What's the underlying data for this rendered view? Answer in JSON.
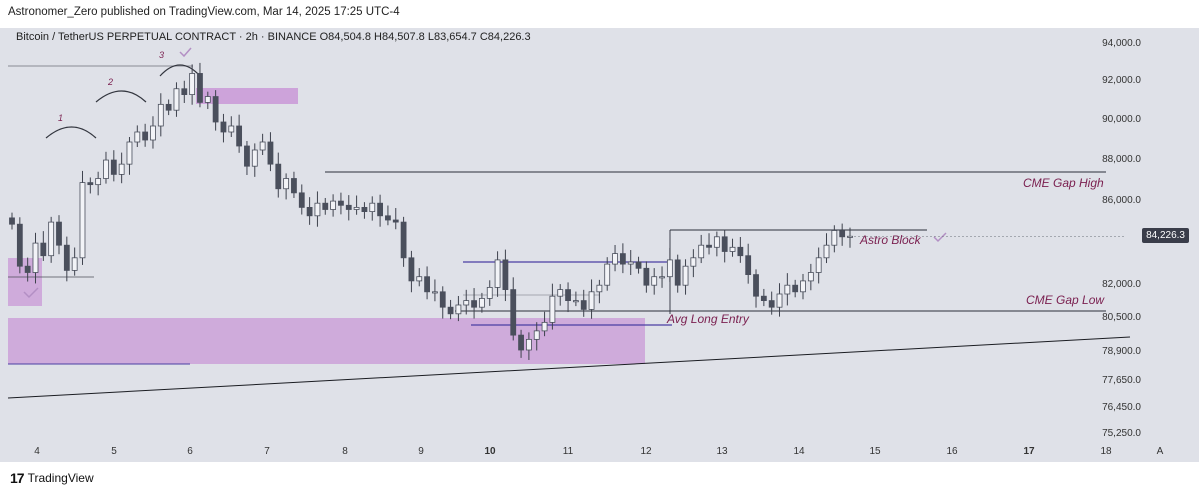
{
  "header": {
    "caption": "Astronomer_Zero published on TradingView.com, Mar 14, 2025 17:25 UTC-4"
  },
  "symbol": {
    "line": "Bitcoin / TetherUS PERPETUAL CONTRACT · 2h · BINANCE  O84,504.8  H84,507.8  L83,654.7  C84,226.3"
  },
  "footer": {
    "logo": "17",
    "brand": "TradingView"
  },
  "colors": {
    "background": "#dfe1e8",
    "candle": "#4a4f5c",
    "zone": "#c894d6",
    "annotation": "#7a1f4f",
    "line": "#2b2f3a",
    "blue_line": "#4b3fa3"
  },
  "chart_data": {
    "type": "candlestick",
    "x_axis": {
      "labels": [
        "4",
        "5",
        "6",
        "7",
        "8",
        "9",
        "10",
        "11",
        "12",
        "13",
        "14",
        "15",
        "16",
        "17",
        "18"
      ],
      "bold": [
        "10",
        "17"
      ]
    },
    "y_axis": {
      "ticks": [
        "94,000.0",
        "92,000.0",
        "90,000.0",
        "88,000.0",
        "86,000.0",
        "82,000.0",
        "80,500.0",
        "78,900.0",
        "77,650.0",
        "76,450.0",
        "75,250.0"
      ],
      "current_price": "84,226.3"
    },
    "annotations": {
      "wave_labels": [
        "1",
        "2",
        "3"
      ],
      "cme_gap_high": "CME Gap High",
      "astro_block": "Astro Block",
      "cme_gap_low": "CME Gap Low",
      "avg_long_entry": "Avg Long Entry",
      "corner": "A"
    },
    "levels": {
      "cme_gap_high": 87200,
      "cme_gap_low": 80700,
      "astro_block": 84400
    },
    "closes": [
      84800,
      82800,
      82500,
      83900,
      83300,
      84900,
      83800,
      82600,
      83200,
      86800,
      86700,
      87000,
      87900,
      87200,
      87700,
      88800,
      89300,
      88900,
      89600,
      90700,
      90400,
      91500,
      91200,
      92300,
      90800,
      91100,
      89800,
      89300,
      89600,
      88600,
      87600,
      88400,
      88800,
      87700,
      86500,
      87000,
      86300,
      85600,
      85200,
      85800,
      85500,
      85900,
      85700,
      85500,
      85600,
      85400,
      85800,
      85200,
      85000,
      84900,
      83200,
      82100,
      82300,
      81600,
      81600,
      80900,
      80600,
      81000,
      81200,
      80900,
      81300,
      81800,
      83100,
      81700,
      79600,
      78900,
      79400,
      79800,
      80200,
      81400,
      81700,
      81200,
      81200,
      80800,
      81600,
      81900,
      82900,
      83400,
      82900,
      83000,
      82700,
      81900,
      82300,
      82300,
      83100,
      81900,
      82800,
      83200,
      83800,
      83700,
      84200,
      83500,
      83700,
      83300,
      82400,
      81400,
      81200,
      80900,
      81500,
      81900,
      81600,
      82100,
      82500,
      83200,
      83800,
      84500,
      84200,
      84226
    ]
  }
}
